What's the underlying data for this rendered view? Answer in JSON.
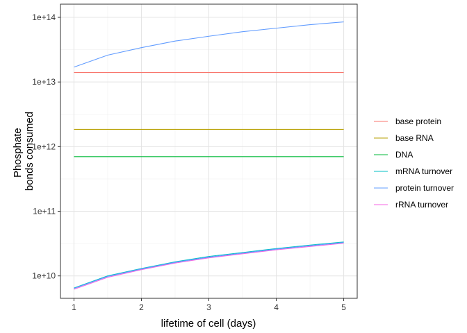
{
  "chart_data": {
    "type": "line",
    "xlabel": "lifetime of cell (days)",
    "ylabel": "Phosphate bonds consumed",
    "ylabel_lines": [
      "Phosphate",
      "bonds consumed"
    ],
    "y_scale": "log10",
    "xlim": [
      0.8,
      5.2
    ],
    "ylim": [
      4500000000.0,
      160000000000000.0
    ],
    "x_ticks": [
      1,
      2,
      3,
      4,
      5
    ],
    "x_tick_labels": [
      "1",
      "2",
      "3",
      "4",
      "5"
    ],
    "y_ticks": [
      10000000000.0,
      100000000000.0,
      1000000000000.0,
      10000000000000.0,
      100000000000000.0
    ],
    "y_tick_labels": [
      "1e+10",
      "1e+11",
      "1e+12",
      "1e+13",
      "1e+14"
    ],
    "grid": true,
    "legend_position": "right",
    "x": [
      1,
      1.5,
      2,
      2.5,
      3,
      3.5,
      4,
      4.5,
      5
    ],
    "series": [
      {
        "name": "base protein",
        "color": "#F8766D",
        "values": [
          14000000000000.0,
          14000000000000.0,
          14000000000000.0,
          14000000000000.0,
          14000000000000.0,
          14000000000000.0,
          14000000000000.0,
          14000000000000.0,
          14000000000000.0
        ]
      },
      {
        "name": "base RNA",
        "color": "#B79F00",
        "values": [
          1850000000000.0,
          1850000000000.0,
          1850000000000.0,
          1850000000000.0,
          1850000000000.0,
          1850000000000.0,
          1850000000000.0,
          1850000000000.0,
          1850000000000.0
        ]
      },
      {
        "name": "DNA",
        "color": "#00BA38",
        "values": [
          700000000000.0,
          700000000000.0,
          700000000000.0,
          700000000000.0,
          700000000000.0,
          700000000000.0,
          700000000000.0,
          700000000000.0,
          700000000000.0
        ]
      },
      {
        "name": "mRNA turnover",
        "color": "#00BFC4",
        "values": [
          6500000000.0,
          10000000000.0,
          13000000000.0,
          16500000000.0,
          20000000000.0,
          23000000000.0,
          26500000000.0,
          30000000000.0,
          33500000000.0
        ]
      },
      {
        "name": "protein turnover",
        "color": "#619CFF",
        "values": [
          17000000000000.0,
          26000000000000.0,
          34000000000000.0,
          43000000000000.0,
          51000000000000.0,
          60000000000000.0,
          68000000000000.0,
          77000000000000.0,
          85000000000000.0
        ]
      },
      {
        "name": "rRNA turnover",
        "color": "#F564E3",
        "values": [
          6200000000.0,
          9500000000.0,
          12500000000.0,
          15800000000.0,
          19000000000.0,
          22000000000.0,
          25300000000.0,
          28500000000.0,
          32000000000.0
        ]
      }
    ],
    "extra_overlay": {
      "name": "protein turnover",
      "color": "#619CFF",
      "values": [
        6400000000.0,
        9800000000.0,
        12800000000.0,
        16200000000.0,
        19500000000.0,
        22500000000.0,
        26000000000.0,
        29300000000.0,
        32800000000.0
      ]
    }
  }
}
